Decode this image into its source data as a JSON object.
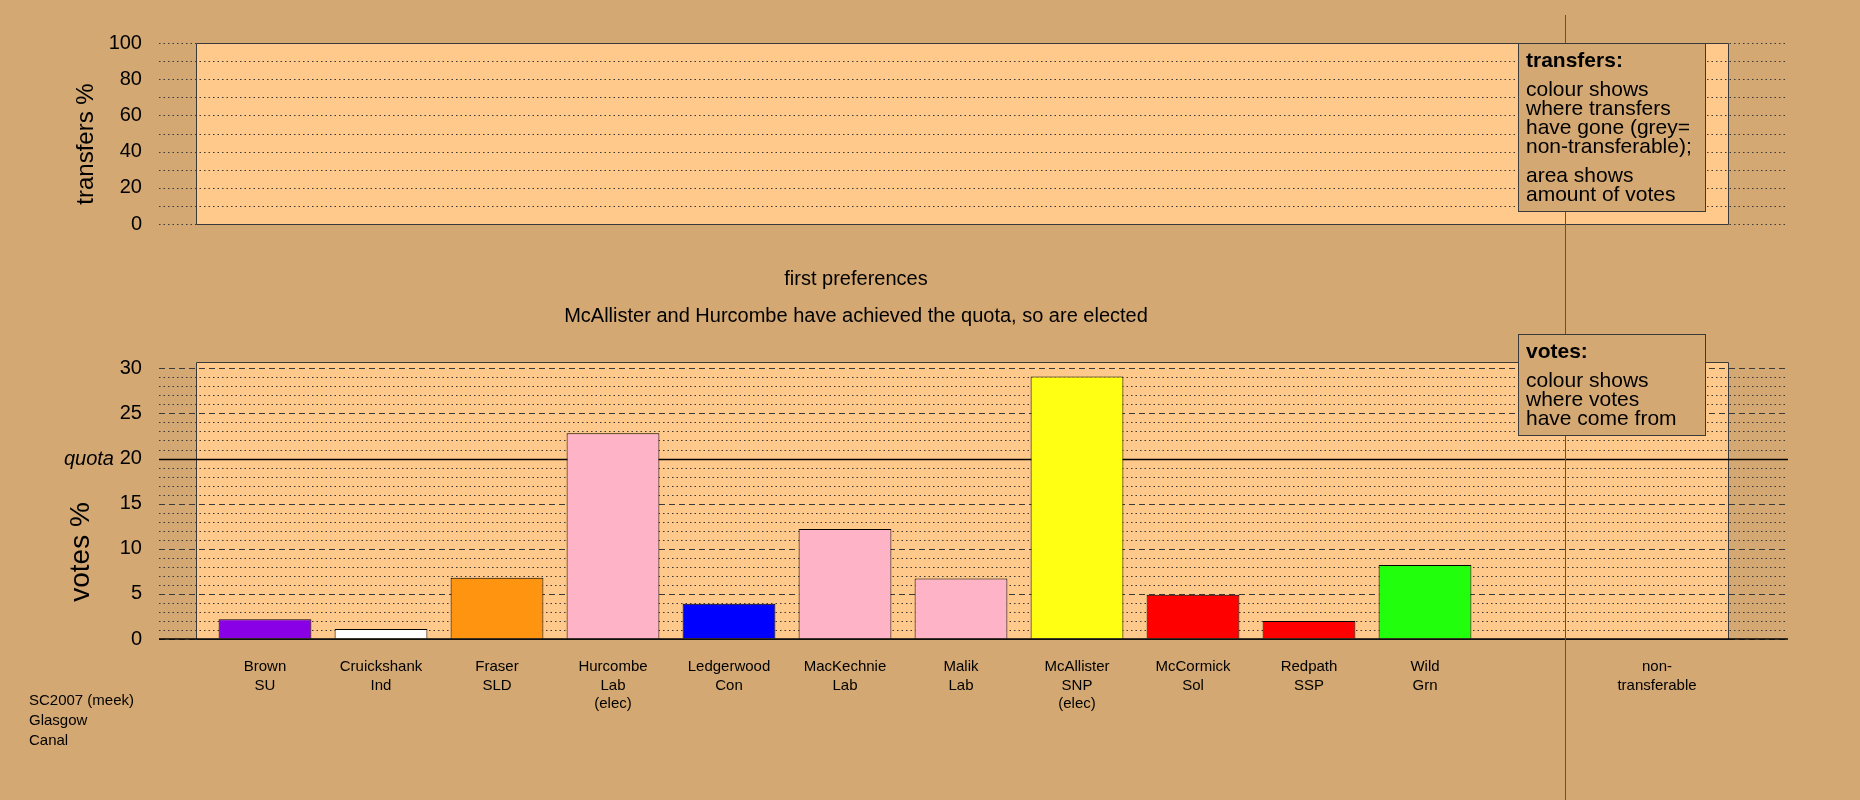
{
  "chart_data": [
    {
      "type": "bar",
      "ylabel": "transfers %",
      "categories": [
        null,
        null,
        null,
        null,
        null,
        null,
        null,
        null,
        null,
        null,
        null,
        null,
        null
      ],
      "values": [
        null,
        null,
        null,
        null,
        null,
        null,
        null,
        null,
        null,
        null,
        null,
        null,
        null
      ],
      "ylim": [
        0,
        100
      ],
      "yticks": [
        0,
        {
          "value": 10,
          "label": null
        },
        20,
        {
          "value": 30,
          "label": null
        },
        40,
        {
          "value": 50,
          "label": null
        },
        60,
        {
          "value": 70,
          "label": null
        },
        80,
        {
          "value": 90,
          "label": null
        },
        100
      ],
      "grid": "y",
      "annotations": [
        "transfers:",
        "colour shows\nwhere transfers\nhave gone (grey=\nnon-transferable);",
        "area shows\namount of votes"
      ]
    },
    {
      "type": "bar",
      "title": "first preferences",
      "subtitle": "McAllister and Hurcombe have achieved the quota, so are elected",
      "ylabel": "votes %",
      "categories": [
        "Brown\nSU",
        "Cruickshank\nInd",
        "Fraser\nSLD",
        "Hurcombe\nLab\n(elec)",
        "Ledgerwood\nCon",
        "MacKechnie\nLab",
        "Malik\nLab",
        "McAllister\nSNP\n(elec)",
        "McCormick\nSol",
        "Redpath\nSSP",
        "Wild\nGrn",
        null,
        "non-\ntransferable"
      ],
      "values": [
        2.2,
        1.1,
        6.8,
        22.8,
        3.9,
        12.2,
        6.7,
        29.1,
        4.9,
        2.0,
        8.2,
        null,
        null
      ],
      "colors": [
        "#8a00e6",
        "#ffffff",
        "#ff9410",
        "#ffb3c6",
        "#0000ff",
        "#ffb3c6",
        "#ffb3c6",
        "#ffff14",
        "#ff0000",
        "#ff0000",
        "#22ff0c",
        null,
        null
      ],
      "ylim": [
        0,
        30.7
      ],
      "yticks": [
        0,
        {
          "value": 1,
          "label": null
        },
        {
          "value": 2,
          "label": null
        },
        {
          "value": 3,
          "label": null
        },
        {
          "value": 4,
          "label": null
        },
        5,
        {
          "value": 6,
          "label": null
        },
        {
          "value": 7,
          "label": null
        },
        {
          "value": 8,
          "label": null
        },
        {
          "value": 9,
          "label": null
        },
        10,
        {
          "value": 11,
          "label": null
        },
        {
          "value": 12,
          "label": null
        },
        {
          "value": 13,
          "label": null
        },
        {
          "value": 14,
          "label": null
        },
        15,
        {
          "value": 16,
          "label": null
        },
        {
          "value": 17,
          "label": null
        },
        {
          "value": 18,
          "label": null
        },
        {
          "value": 19,
          "label": null
        },
        20,
        {
          "value": 21,
          "label": null
        },
        {
          "value": 22,
          "label": null
        },
        {
          "value": 23,
          "label": null
        },
        {
          "value": 24,
          "label": null
        },
        25,
        {
          "value": 26,
          "label": null
        },
        {
          "value": 27,
          "label": null
        },
        {
          "value": 28,
          "label": null
        },
        {
          "value": 29,
          "label": null
        },
        30
      ],
      "grid": "y",
      "ref_lines": [
        {
          "axis": "y",
          "value": 20,
          "label": "quota"
        }
      ],
      "annotations": [
        "votes:",
        "colour shows\nwhere votes\nhave come from",
        "SC2007 (meek)\nGlasgow\nCanal"
      ]
    }
  ]
}
